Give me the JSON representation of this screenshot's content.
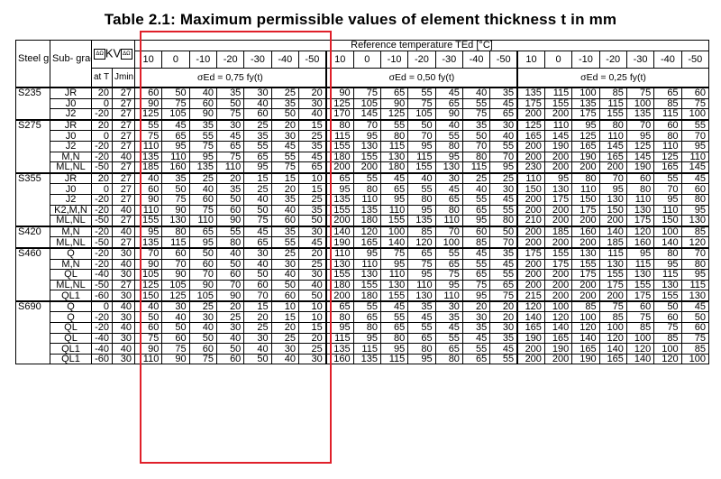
{
  "title": "Table 2.1: Maximum permissible values of element thickness t in mm",
  "header": {
    "steel_grade": "Steel grade",
    "sub_grade": "Sub- grade",
    "kv_label": "KV",
    "kv_tag": "ΔΩ",
    "at_t": "at T [°C]",
    "jmin": "Jmin",
    "reference_temperature": "Reference temperature TEd [°C]",
    "temperatures": [
      "10",
      "0",
      "-10",
      "-20",
      "-30",
      "-40",
      "-50"
    ],
    "sigma_labels": [
      "σEd = 0,75 fy(t)",
      "σEd = 0,50 fy(t)",
      "σEd = 0,25 fy(t)"
    ]
  },
  "groups": [
    {
      "grade": "S235",
      "rows": [
        {
          "sub": "JR",
          "t": "20",
          "j": "27",
          "v": [
            "60",
            "50",
            "40",
            "35",
            "30",
            "25",
            "20",
            "90",
            "75",
            "65",
            "55",
            "45",
            "40",
            "35",
            "135",
            "115",
            "100",
            "85",
            "75",
            "65",
            "60"
          ]
        },
        {
          "sub": "J0",
          "t": "0",
          "j": "27",
          "v": [
            "90",
            "75",
            "60",
            "50",
            "40",
            "35",
            "30",
            "125",
            "105",
            "90",
            "75",
            "65",
            "55",
            "45",
            "175",
            "155",
            "135",
            "115",
            "100",
            "85",
            "75"
          ]
        },
        {
          "sub": "J2",
          "t": "-20",
          "j": "27",
          "v": [
            "125",
            "105",
            "90",
            "75",
            "60",
            "50",
            "40",
            "170",
            "145",
            "125",
            "105",
            "90",
            "75",
            "65",
            "200",
            "200",
            "175",
            "155",
            "135",
            "115",
            "100"
          ]
        }
      ]
    },
    {
      "grade": "S275",
      "rows": [
        {
          "sub": "JR",
          "t": "20",
          "j": "27",
          "v": [
            "55",
            "45",
            "35",
            "30",
            "25",
            "20",
            "15",
            "80",
            "70",
            "55",
            "50",
            "40",
            "35",
            "30",
            "125",
            "110",
            "95",
            "80",
            "70",
            "60",
            "55"
          ]
        },
        {
          "sub": "J0",
          "t": "0",
          "j": "27",
          "v": [
            "75",
            "65",
            "55",
            "45",
            "35",
            "30",
            "25",
            "115",
            "95",
            "80",
            "70",
            "55",
            "50",
            "40",
            "165",
            "145",
            "125",
            "110",
            "95",
            "80",
            "70"
          ]
        },
        {
          "sub": "J2",
          "t": "-20",
          "j": "27",
          "v": [
            "110",
            "95",
            "75",
            "65",
            "55",
            "45",
            "35",
            "155",
            "130",
            "115",
            "95",
            "80",
            "70",
            "55",
            "200",
            "190",
            "165",
            "145",
            "125",
            "110",
            "95"
          ]
        },
        {
          "sub": "M,N",
          "t": "-20",
          "j": "40",
          "v": [
            "135",
            "110",
            "95",
            "75",
            "65",
            "55",
            "45",
            "180",
            "155",
            "130",
            "115",
            "95",
            "80",
            "70",
            "200",
            "200",
            "190",
            "165",
            "145",
            "125",
            "110"
          ]
        },
        {
          "sub": "ML,NL",
          "t": "-50",
          "j": "27",
          "v": [
            "185",
            "160",
            "135",
            "110",
            "95",
            "75",
            "65",
            "200",
            "200",
            "180",
            "155",
            "130",
            "115",
            "95",
            "230",
            "200",
            "200",
            "200",
            "190",
            "165",
            "145"
          ]
        }
      ]
    },
    {
      "grade": "S355",
      "rows": [
        {
          "sub": "JR",
          "t": "20",
          "j": "27",
          "v": [
            "40",
            "35",
            "25",
            "20",
            "15",
            "15",
            "10",
            "65",
            "55",
            "45",
            "40",
            "30",
            "25",
            "25",
            "110",
            "95",
            "80",
            "70",
            "60",
            "55",
            "45"
          ]
        },
        {
          "sub": "J0",
          "t": "0",
          "j": "27",
          "v": [
            "60",
            "50",
            "40",
            "35",
            "25",
            "20",
            "15",
            "95",
            "80",
            "65",
            "55",
            "45",
            "40",
            "30",
            "150",
            "130",
            "110",
            "95",
            "80",
            "70",
            "60"
          ]
        },
        {
          "sub": "J2",
          "t": "-20",
          "j": "27",
          "v": [
            "90",
            "75",
            "60",
            "50",
            "40",
            "35",
            "25",
            "135",
            "110",
            "95",
            "80",
            "65",
            "55",
            "45",
            "200",
            "175",
            "150",
            "130",
            "110",
            "95",
            "80"
          ]
        },
        {
          "sub": "K2,M,N",
          "t": "-20",
          "j": "40",
          "v": [
            "110",
            "90",
            "75",
            "60",
            "50",
            "40",
            "35",
            "155",
            "135",
            "110",
            "95",
            "80",
            "65",
            "55",
            "200",
            "200",
            "175",
            "150",
            "130",
            "110",
            "95"
          ]
        },
        {
          "sub": "ML,NL",
          "t": "-50",
          "j": "27",
          "v": [
            "155",
            "130",
            "110",
            "90",
            "75",
            "60",
            "50",
            "200",
            "180",
            "155",
            "135",
            "110",
            "95",
            "80",
            "210",
            "200",
            "200",
            "200",
            "175",
            "150",
            "130"
          ]
        }
      ]
    },
    {
      "grade": "S420",
      "rows": [
        {
          "sub": "M,N",
          "t": "-20",
          "j": "40",
          "v": [
            "95",
            "80",
            "65",
            "55",
            "45",
            "35",
            "30",
            "140",
            "120",
            "100",
            "85",
            "70",
            "60",
            "50",
            "200",
            "185",
            "160",
            "140",
            "120",
            "100",
            "85"
          ]
        },
        {
          "sub": "ML,NL",
          "t": "-50",
          "j": "27",
          "v": [
            "135",
            "115",
            "95",
            "80",
            "65",
            "55",
            "45",
            "190",
            "165",
            "140",
            "120",
            "100",
            "85",
            "70",
            "200",
            "200",
            "200",
            "185",
            "160",
            "140",
            "120"
          ]
        }
      ]
    },
    {
      "grade": "S460",
      "rows": [
        {
          "sub": "Q",
          "t": "-20",
          "j": "30",
          "v": [
            "70",
            "60",
            "50",
            "40",
            "30",
            "25",
            "20",
            "110",
            "95",
            "75",
            "65",
            "55",
            "45",
            "35",
            "175",
            "155",
            "130",
            "115",
            "95",
            "80",
            "70"
          ]
        },
        {
          "sub": "M,N",
          "t": "-20",
          "j": "40",
          "v": [
            "90",
            "70",
            "60",
            "50",
            "40",
            "30",
            "25",
            "130",
            "110",
            "95",
            "75",
            "65",
            "55",
            "45",
            "200",
            "175",
            "155",
            "130",
            "115",
            "95",
            "80"
          ]
        },
        {
          "sub": "QL",
          "t": "-40",
          "j": "30",
          "v": [
            "105",
            "90",
            "70",
            "60",
            "50",
            "40",
            "30",
            "155",
            "130",
            "110",
            "95",
            "75",
            "65",
            "55",
            "200",
            "200",
            "175",
            "155",
            "130",
            "115",
            "95"
          ]
        },
        {
          "sub": "ML,NL",
          "t": "-50",
          "j": "27",
          "v": [
            "125",
            "105",
            "90",
            "70",
            "60",
            "50",
            "40",
            "180",
            "155",
            "130",
            "110",
            "95",
            "75",
            "65",
            "200",
            "200",
            "200",
            "175",
            "155",
            "130",
            "115"
          ]
        },
        {
          "sub": "QL1",
          "t": "-60",
          "j": "30",
          "v": [
            "150",
            "125",
            "105",
            "90",
            "70",
            "60",
            "50",
            "200",
            "180",
            "155",
            "130",
            "110",
            "95",
            "75",
            "215",
            "200",
            "200",
            "200",
            "175",
            "155",
            "130"
          ]
        }
      ]
    },
    {
      "grade": "S690",
      "rows": [
        {
          "sub": "Q",
          "t": "0",
          "j": "40",
          "v": [
            "40",
            "30",
            "25",
            "20",
            "15",
            "10",
            "10",
            "65",
            "55",
            "45",
            "35",
            "30",
            "20",
            "20",
            "120",
            "100",
            "85",
            "75",
            "60",
            "50",
            "45"
          ]
        },
        {
          "sub": "Q",
          "t": "-20",
          "j": "30",
          "v": [
            "50",
            "40",
            "30",
            "25",
            "20",
            "15",
            "10",
            "80",
            "65",
            "55",
            "45",
            "35",
            "30",
            "20",
            "140",
            "120",
            "100",
            "85",
            "75",
            "60",
            "50"
          ]
        },
        {
          "sub": "QL",
          "t": "-20",
          "j": "40",
          "v": [
            "60",
            "50",
            "40",
            "30",
            "25",
            "20",
            "15",
            "95",
            "80",
            "65",
            "55",
            "45",
            "35",
            "30",
            "165",
            "140",
            "120",
            "100",
            "85",
            "75",
            "60"
          ]
        },
        {
          "sub": "QL",
          "t": "-40",
          "j": "30",
          "v": [
            "75",
            "60",
            "50",
            "40",
            "30",
            "25",
            "20",
            "115",
            "95",
            "80",
            "65",
            "55",
            "45",
            "35",
            "190",
            "165",
            "140",
            "120",
            "100",
            "85",
            "75"
          ]
        },
        {
          "sub": "QL1",
          "t": "-40",
          "j": "40",
          "v": [
            "90",
            "75",
            "60",
            "50",
            "40",
            "30",
            "25",
            "135",
            "115",
            "95",
            "80",
            "65",
            "55",
            "45",
            "200",
            "190",
            "165",
            "140",
            "120",
            "100",
            "85"
          ]
        },
        {
          "sub": "QL1",
          "t": "-60",
          "j": "30",
          "v": [
            "110",
            "90",
            "75",
            "60",
            "50",
            "40",
            "30",
            "160",
            "135",
            "115",
            "95",
            "80",
            "65",
            "55",
            "200",
            "200",
            "190",
            "165",
            "140",
            "120",
            "100"
          ]
        }
      ]
    }
  ]
}
